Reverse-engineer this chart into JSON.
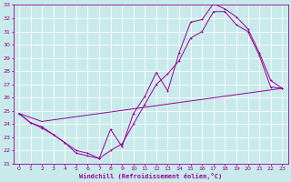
{
  "xlabel": "Windchill (Refroidissement éolien,°C)",
  "bg_color": "#c8eaea",
  "line_color": "#990099",
  "grid_color": "#ffffff",
  "xlim": [
    -0.5,
    23.5
  ],
  "ylim": [
    21,
    33
  ],
  "xticks": [
    0,
    1,
    2,
    3,
    4,
    5,
    6,
    7,
    8,
    9,
    10,
    11,
    12,
    13,
    14,
    15,
    16,
    17,
    18,
    19,
    20,
    21,
    22,
    23
  ],
  "yticks": [
    21,
    22,
    23,
    24,
    25,
    26,
    27,
    28,
    29,
    30,
    31,
    32,
    33
  ],
  "line1_x": [
    0,
    1,
    2,
    3,
    4,
    5,
    6,
    7,
    8,
    9,
    10,
    11,
    12,
    13,
    14,
    15,
    16,
    17,
    18,
    19,
    20,
    21,
    22,
    23
  ],
  "line1_y": [
    24.8,
    24.1,
    23.7,
    23.2,
    22.6,
    21.8,
    21.6,
    21.4,
    23.6,
    22.3,
    24.8,
    26.1,
    27.9,
    26.5,
    29.4,
    31.7,
    31.9,
    33.1,
    32.7,
    32.1,
    31.2,
    29.4,
    27.3,
    26.7
  ],
  "line2_x": [
    0,
    2,
    23
  ],
  "line2_y": [
    24.8,
    24.2,
    26.7
  ],
  "line3_x": [
    0,
    1,
    2,
    3,
    4,
    5,
    6,
    7,
    8,
    9,
    10,
    11,
    12,
    13,
    14,
    15,
    16,
    17,
    18,
    19,
    20,
    21,
    22,
    23
  ],
  "line3_y": [
    24.8,
    24.1,
    23.8,
    23.2,
    22.6,
    22.0,
    21.8,
    21.4,
    22.0,
    22.5,
    24.0,
    25.5,
    27.0,
    27.8,
    28.8,
    30.5,
    31.0,
    32.5,
    32.5,
    31.5,
    31.0,
    29.2,
    26.8,
    26.7
  ]
}
